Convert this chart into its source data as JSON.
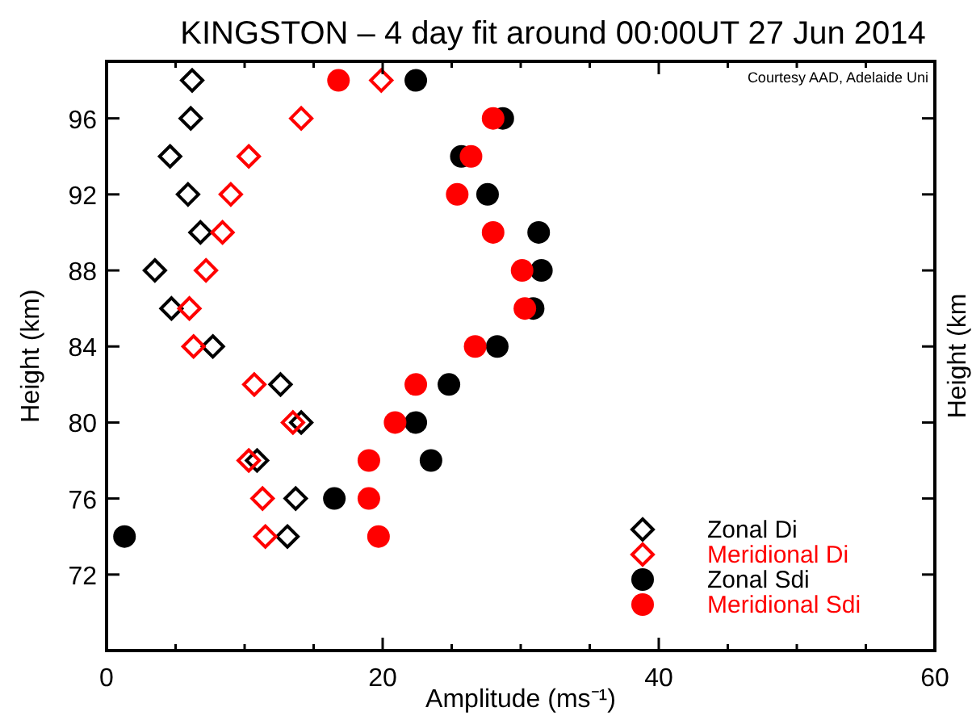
{
  "chart_data": {
    "type": "scatter",
    "title": "KINGSTON – 4 day fit around 00:00UT 27 Jun 2014",
    "xlabel": "Amplitude (ms⁻¹)",
    "ylabel": "Height (km)",
    "xlim": [
      0,
      60
    ],
    "ylim": [
      68,
      99
    ],
    "xticks": [
      0,
      {
        "value": 5,
        "label": null
      },
      {
        "value": 10,
        "label": null
      },
      {
        "value": 15,
        "label": null
      },
      20,
      {
        "value": 25,
        "label": null
      },
      {
        "value": 30,
        "label": null
      },
      {
        "value": 35,
        "label": null
      },
      40,
      {
        "value": 45,
        "label": null
      },
      {
        "value": 50,
        "label": null
      },
      {
        "value": 55,
        "label": null
      },
      60
    ],
    "yticks": [
      72,
      76,
      80,
      84,
      88,
      92,
      96
    ],
    "grid": false,
    "legend": "bottom right",
    "annotations": [
      "Courtesy AAD, Adelaide Uni",
      "Height (km"
    ],
    "series": [
      {
        "name": "Zonal Di",
        "color": "#000000",
        "marker": "diamond",
        "x": [
          6.2,
          6.1,
          4.6,
          5.9,
          6.8,
          3.5,
          4.7,
          7.7,
          12.6,
          14.1,
          10.9,
          13.7,
          13.1
        ],
        "values": [
          98,
          96,
          94,
          92,
          90,
          88,
          86,
          84,
          82,
          80,
          78,
          76,
          74
        ]
      },
      {
        "name": "Meridional Di",
        "color": "#ff0000",
        "marker": "diamond",
        "x": [
          19.9,
          14.1,
          10.3,
          9.0,
          8.4,
          7.2,
          6.0,
          6.3,
          10.7,
          13.5,
          10.3,
          11.3,
          11.5
        ],
        "values": [
          98,
          96,
          94,
          92,
          90,
          88,
          86,
          84,
          82,
          80,
          78,
          76,
          74
        ]
      },
      {
        "name": "Zonal Sdi",
        "color": "#000000",
        "marker": "circle",
        "x": [
          22.4,
          28.7,
          25.7,
          27.6,
          31.3,
          31.5,
          30.9,
          28.3,
          24.8,
          22.4,
          23.5,
          16.5,
          1.3
        ],
        "values": [
          98,
          96,
          94,
          92,
          90,
          88,
          86,
          84,
          82,
          80,
          78,
          76,
          74
        ]
      },
      {
        "name": "Meridional Sdi",
        "color": "#ff0000",
        "marker": "circle",
        "x": [
          16.8,
          28.0,
          26.4,
          25.4,
          28.0,
          30.1,
          30.3,
          26.7,
          22.4,
          20.9,
          19.0,
          19.0,
          19.7
        ],
        "values": [
          98,
          96,
          94,
          92,
          90,
          88,
          86,
          84,
          82,
          80,
          78,
          76,
          74
        ]
      }
    ]
  }
}
